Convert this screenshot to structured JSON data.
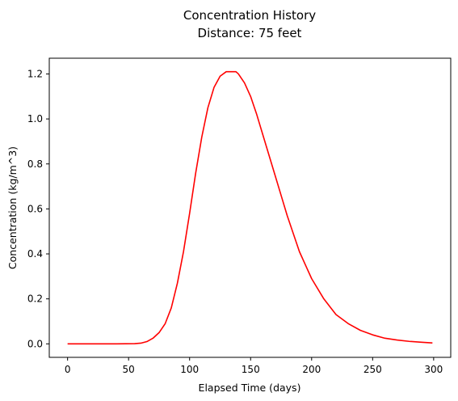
{
  "chart_data": {
    "type": "line",
    "title": "Concentration History",
    "subtitle": "Distance: 75 feet",
    "xlabel": "Elapsed Time (days)",
    "ylabel": "Concentration  (kg/m^3)",
    "xlim": [
      -15,
      314
    ],
    "ylim": [
      -0.06,
      1.27
    ],
    "x_ticks": [
      0,
      50,
      100,
      150,
      200,
      250,
      300
    ],
    "y_ticks": [
      0.0,
      0.2,
      0.4,
      0.6,
      0.8,
      1.0,
      1.2
    ],
    "x_tick_labels": [
      "0",
      "50",
      "100",
      "150",
      "200",
      "250",
      "300"
    ],
    "y_tick_labels": [
      "0.0",
      "0.2",
      "0.4",
      "0.6",
      "0.8",
      "1.0",
      "1.2"
    ],
    "grid": false,
    "series": [
      {
        "color": "#ff0000",
        "x": [
          0,
          20,
          40,
          55,
          60,
          65,
          70,
          75,
          80,
          85,
          90,
          95,
          100,
          105,
          110,
          115,
          120,
          125,
          130,
          135,
          138,
          140,
          145,
          150,
          155,
          160,
          165,
          170,
          175,
          180,
          185,
          190,
          195,
          200,
          210,
          220,
          230,
          240,
          250,
          260,
          270,
          280,
          290,
          299
        ],
        "y": [
          0.0,
          0.0,
          0.0,
          0.001,
          0.003,
          0.01,
          0.025,
          0.05,
          0.09,
          0.16,
          0.27,
          0.41,
          0.58,
          0.76,
          0.92,
          1.05,
          1.14,
          1.19,
          1.21,
          1.21,
          1.21,
          1.2,
          1.16,
          1.1,
          1.02,
          0.93,
          0.84,
          0.75,
          0.66,
          0.57,
          0.49,
          0.41,
          0.35,
          0.29,
          0.2,
          0.13,
          0.09,
          0.06,
          0.04,
          0.025,
          0.017,
          0.011,
          0.007,
          0.004
        ]
      }
    ]
  }
}
